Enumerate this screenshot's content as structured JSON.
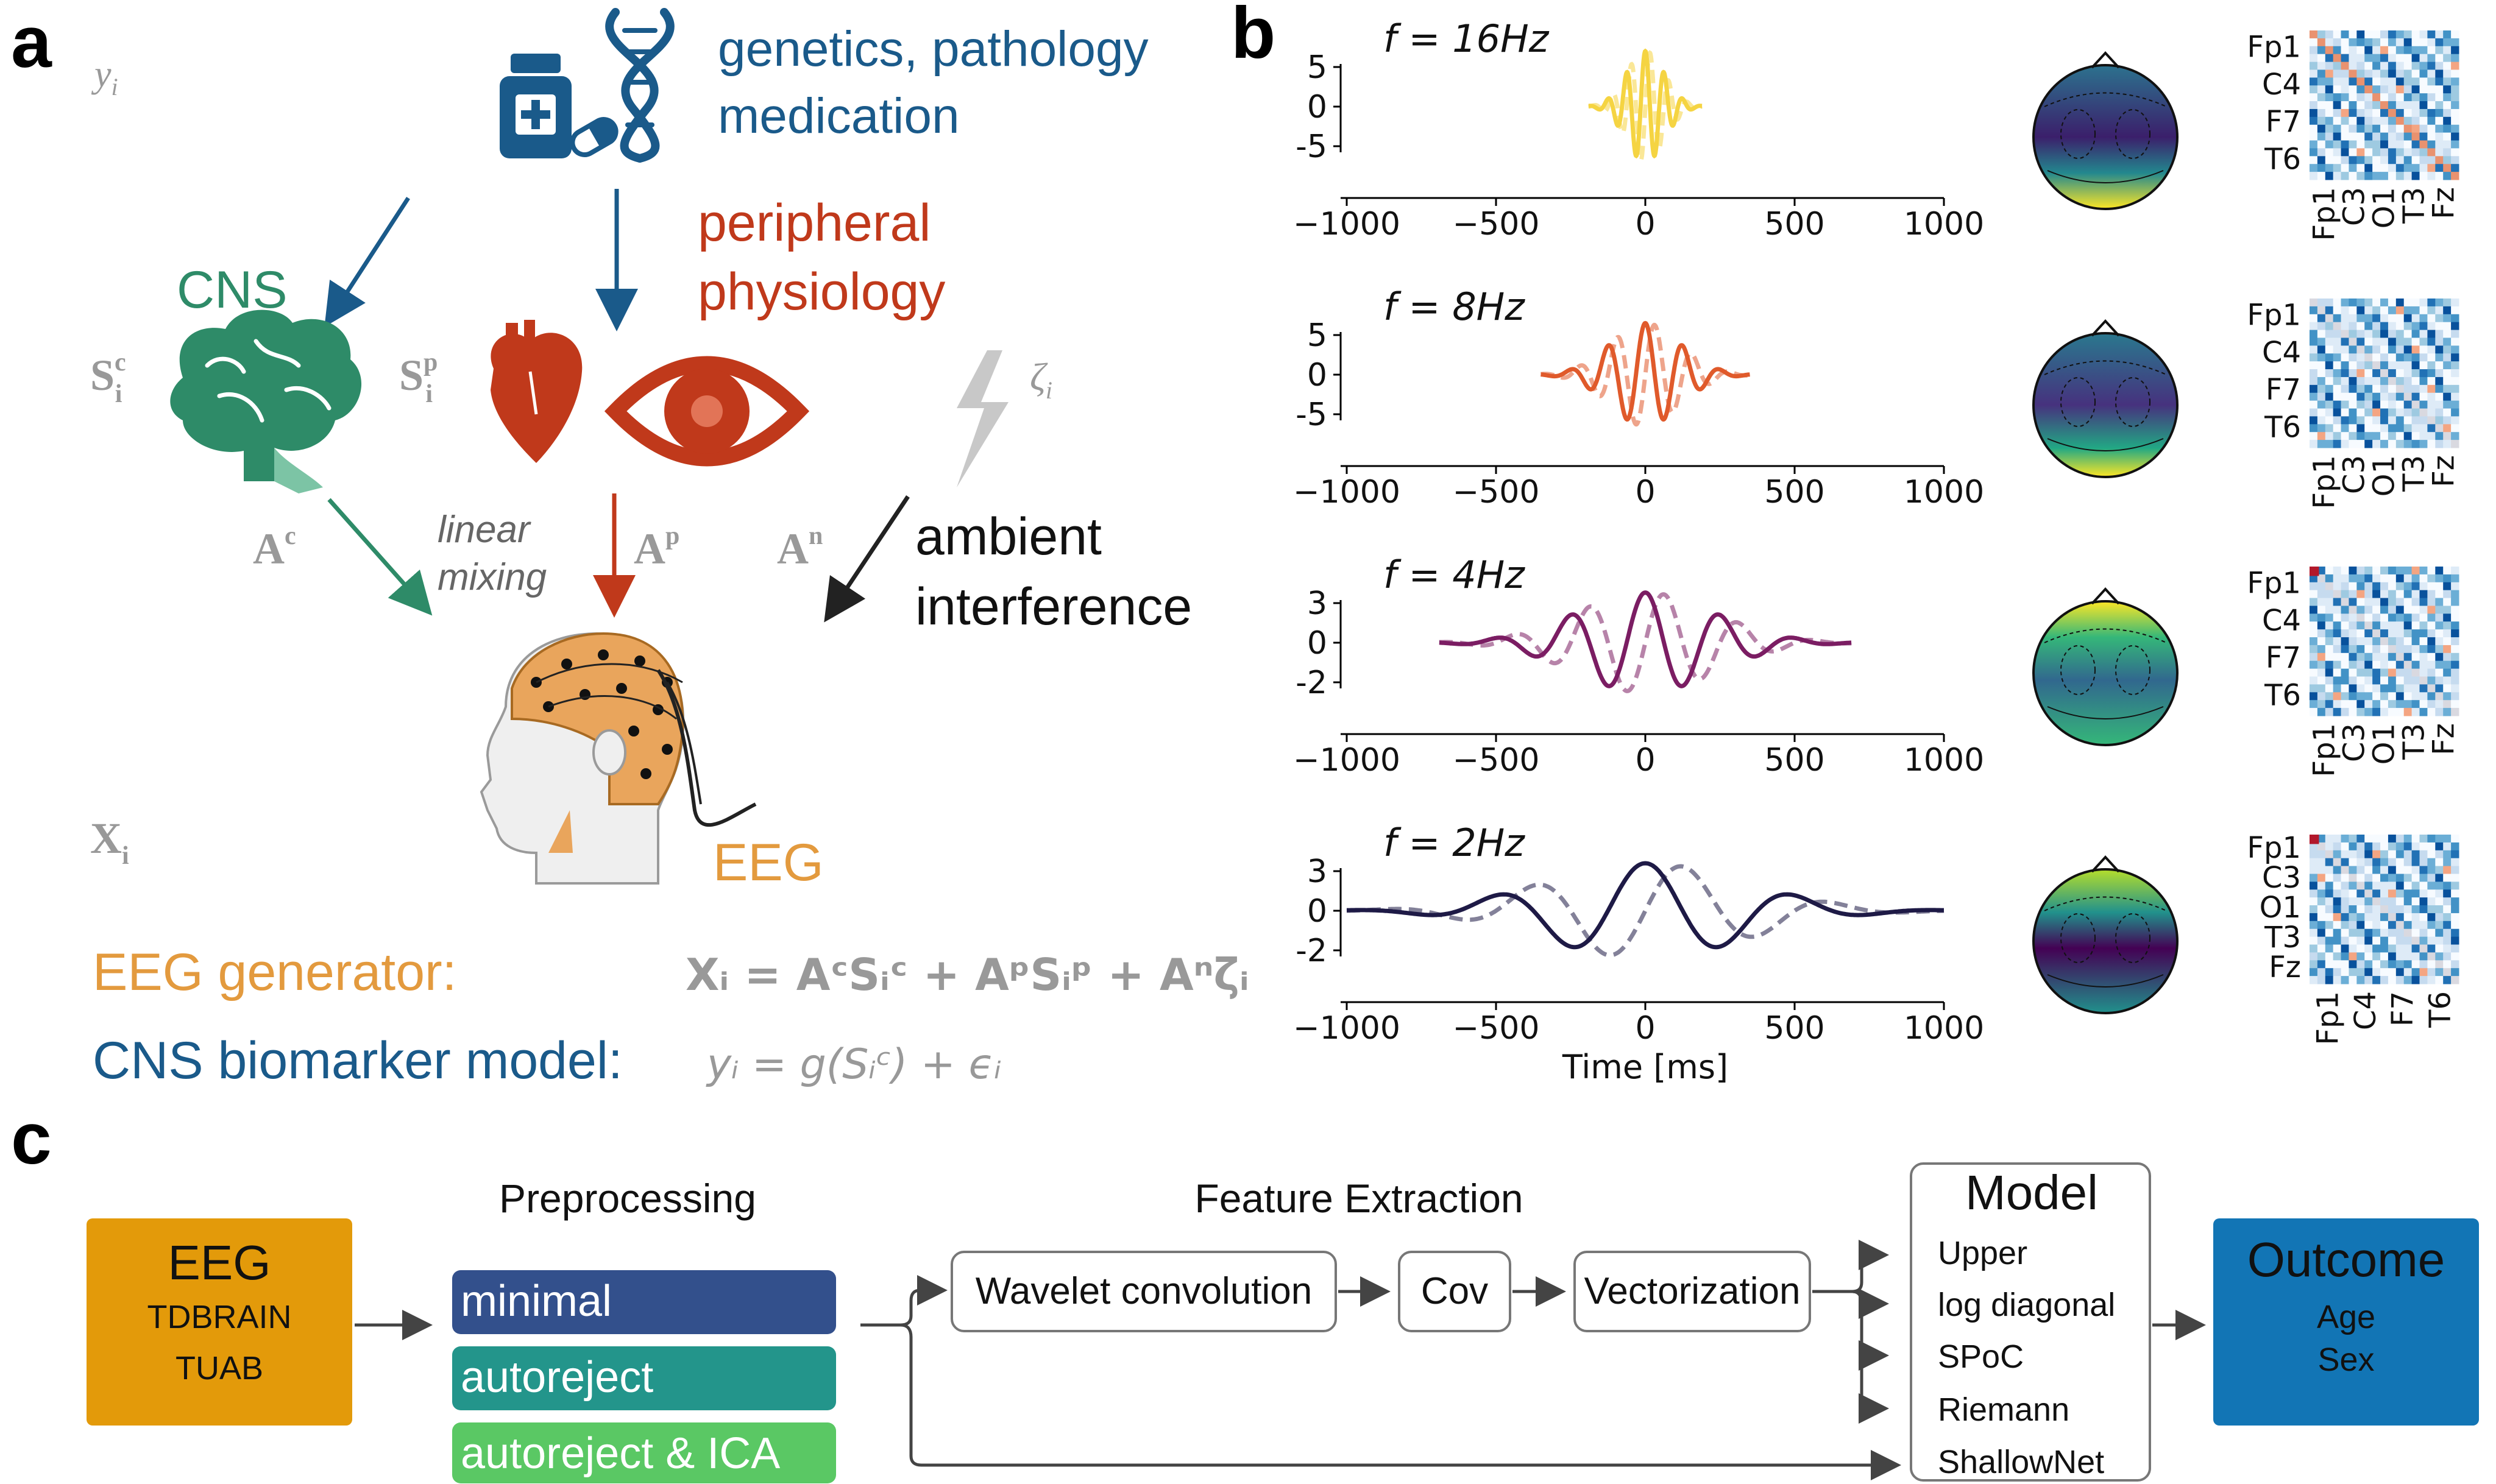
{
  "panel_labels": {
    "a": "a",
    "b": "b",
    "c": "c"
  },
  "colors": {
    "blue": "#1a5a8a",
    "red": "#c0391b",
    "green": "#2e8b68",
    "orange": "#e8a04a",
    "gray": "#999999",
    "yellow": "#f5d442",
    "coral": "#e05a2b",
    "magenta": "#7b1d63",
    "navy": "#1e1a46"
  },
  "panel_a": {
    "y_symbol": "y",
    "y_sub": "i",
    "factors": "genetics, pathology",
    "medication": "medication",
    "cns": "CNS",
    "peripheral_1": "peripheral",
    "peripheral_2": "physiology",
    "sc_base": "S",
    "sc_sub": "i",
    "sc_sup": "c",
    "sp_base": "S",
    "sp_sub": "i",
    "sp_sup": "p",
    "zeta": "ζ",
    "zeta_sub": "i",
    "ac_base": "A",
    "ac_sup": "c",
    "ap_base": "A",
    "ap_sup": "p",
    "an_base": "A",
    "an_sup": "n",
    "mixing_1": "linear",
    "mixing_2": "mixing",
    "ambient_1": "ambient",
    "ambient_2": "interference",
    "x_base": "X",
    "x_sub": "i",
    "eeg": "EEG",
    "generator_label": "EEG generator:",
    "generator_eq": "Xᵢ = AᶜSᵢᶜ + AᵖSᵢᵖ + Aⁿζᵢ",
    "biomarker_label": "CNS biomarker model:",
    "biomarker_eq": "yᵢ = g(Sᵢᶜ) + ϵᵢ"
  },
  "chart_data": [
    {
      "type": "line",
      "title": "f = 16Hz",
      "color": "#f5d442",
      "xlim": [
        -1000,
        1000
      ],
      "ylim": [
        -5,
        5
      ],
      "yticks": [
        "5",
        "0",
        "-5"
      ],
      "xticks": [
        "−1000",
        "−500",
        "0",
        "500",
        "1000"
      ],
      "frequency_hz": 16,
      "support_ms": [
        -190,
        190
      ],
      "amplitude": 7
    },
    {
      "type": "line",
      "title": "f = 8Hz",
      "color": "#e05a2b",
      "xlim": [
        -1000,
        1000
      ],
      "ylim": [
        -5,
        5
      ],
      "yticks": [
        "5",
        "0",
        "-5"
      ],
      "xticks": [
        "−1000",
        "−500",
        "0",
        "500",
        "1000"
      ],
      "frequency_hz": 8,
      "support_ms": [
        -350,
        350
      ],
      "amplitude": 6.5
    },
    {
      "type": "line",
      "title": "f = 4Hz",
      "color": "#7b1d63",
      "xlim": [
        -1000,
        1000
      ],
      "ylim": [
        -3,
        3
      ],
      "yticks": [
        "3",
        "0",
        "-2"
      ],
      "xticks": [
        "−1000",
        "−500",
        "0",
        "500",
        "1000"
      ],
      "frequency_hz": 4,
      "support_ms": [
        -690,
        690
      ],
      "amplitude": 3.8
    },
    {
      "type": "line",
      "title": "f = 2Hz",
      "color": "#1e1a46",
      "xlim": [
        -1000,
        1000
      ],
      "ylim": [
        -3,
        3
      ],
      "yticks": [
        "3",
        "0",
        "-2"
      ],
      "xticks": [
        "−1000",
        "−500",
        "0",
        "500",
        "1000"
      ],
      "frequency_hz": 2,
      "support_ms": [
        -1000,
        1000
      ],
      "amplitude": 3.6,
      "xlabel": "Time [ms]"
    }
  ],
  "covariance": [
    {
      "row_labels": [
        "Fp1",
        "C4",
        "F7",
        "T6"
      ],
      "col_labels": [
        "Fp1",
        "C3",
        "O1",
        "T3",
        "Fz"
      ]
    },
    {
      "row_labels": [
        "Fp1",
        "C4",
        "F7",
        "T6"
      ],
      "col_labels": [
        "Fp1",
        "C3",
        "O1",
        "T3",
        "Fz"
      ]
    },
    {
      "row_labels": [
        "Fp1",
        "C4",
        "F7",
        "T6"
      ],
      "col_labels": [
        "Fp1",
        "C3",
        "O1",
        "T3",
        "Fz"
      ]
    },
    {
      "row_labels": [
        "Fp1",
        "C3",
        "O1",
        "T3",
        "Fz"
      ],
      "col_labels": [
        "Fp1",
        "C4",
        "F7",
        "T6"
      ]
    }
  ],
  "panel_c": {
    "eeg_title": "EEG",
    "eeg_dataset_1": "TDBRAIN",
    "eeg_dataset_2": "TUAB",
    "preprocessing_title": "Preprocessing",
    "prep_minimal": "minimal",
    "prep_autoreject": "autoreject",
    "prep_autoreject_ica": "autoreject & ICA",
    "feature_title": "Feature Extraction",
    "wavelet": "Wavelet convolution",
    "cov": "Cov",
    "vectorization": "Vectorization",
    "model_title": "Model",
    "model_upper": "Upper",
    "model_logdiag": "log diagonal",
    "model_spoc": "SPoC",
    "model_riemann": "Riemann",
    "model_shallownet": "ShallowNet",
    "outcome_title": "Outcome",
    "outcome_age": "Age",
    "outcome_sex": "Sex",
    "eeg_box_color": "#e39a0a",
    "minimal_color": "#33508c",
    "autoreject_color": "#23958b",
    "autoreject_ica_color": "#5ac864",
    "outcome_color": "#1275b5"
  }
}
